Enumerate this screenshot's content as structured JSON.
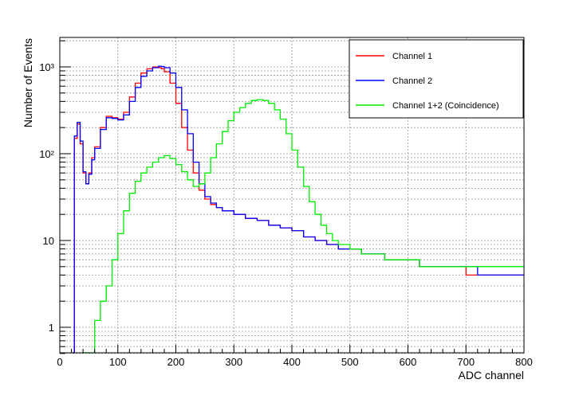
{
  "chart_data": {
    "type": "line",
    "title": "",
    "xlabel": "ADC channel",
    "ylabel": "Number of Events",
    "xlim": [
      0,
      800
    ],
    "ylim": [
      0.5,
      2000
    ],
    "yscale": "log",
    "grid": true,
    "legend_position": "top-right",
    "x_ticks": [
      "0",
      "100",
      "200",
      "300",
      "400",
      "500",
      "600",
      "700",
      "800"
    ],
    "y_ticks": [
      "1",
      "10",
      "10²",
      "10³"
    ],
    "series": [
      {
        "name": "Channel 1",
        "color": "#ff0000",
        "x": [
          22,
          25,
          30,
          35,
          40,
          45,
          50,
          55,
          60,
          70,
          80,
          90,
          100,
          110,
          120,
          130,
          140,
          150,
          160,
          170,
          175,
          180,
          190,
          200,
          210,
          220,
          230,
          240,
          250,
          260,
          270,
          280,
          300,
          320,
          340,
          360,
          380,
          400,
          420,
          440,
          460,
          480,
          500,
          520,
          540,
          560,
          580,
          600,
          620,
          640,
          660,
          680,
          700,
          720,
          740,
          760,
          780,
          800
        ],
        "y": [
          0.5,
          150,
          220,
          130,
          60,
          45,
          60,
          90,
          120,
          200,
          270,
          260,
          250,
          300,
          450,
          650,
          850,
          950,
          1000,
          980,
          950,
          880,
          650,
          380,
          200,
          110,
          60,
          38,
          30,
          26,
          24,
          22,
          20,
          18,
          17,
          15,
          14,
          13,
          11,
          10,
          9,
          8,
          8,
          7,
          7,
          6,
          6,
          6,
          5,
          5,
          5,
          5,
          4,
          4,
          4,
          4,
          4,
          4
        ]
      },
      {
        "name": "Channel 2",
        "color": "#0000ff",
        "x": [
          22,
          25,
          30,
          35,
          40,
          45,
          50,
          55,
          60,
          70,
          80,
          90,
          100,
          110,
          120,
          130,
          140,
          150,
          160,
          170,
          175,
          180,
          190,
          200,
          210,
          220,
          230,
          240,
          250,
          260,
          270,
          280,
          300,
          320,
          340,
          360,
          380,
          400,
          420,
          440,
          460,
          480,
          500,
          520,
          540,
          560,
          580,
          600,
          620,
          640,
          660,
          680,
          700,
          720,
          740,
          760,
          780,
          800
        ],
        "y": [
          0.5,
          160,
          230,
          140,
          62,
          45,
          58,
          85,
          115,
          190,
          260,
          255,
          245,
          280,
          400,
          580,
          780,
          900,
          980,
          1020,
          1010,
          980,
          850,
          580,
          320,
          170,
          80,
          45,
          32,
          27,
          24,
          22,
          20,
          18,
          17,
          15,
          14,
          13,
          11,
          10,
          9,
          8,
          8,
          7,
          7,
          6,
          6,
          6,
          5,
          5,
          5,
          5,
          5,
          4,
          4,
          4,
          4,
          4
        ]
      },
      {
        "name": "Channel 1+2 (Coincidence)",
        "color": "#00ee00",
        "x": [
          40,
          55,
          60,
          70,
          80,
          90,
          100,
          110,
          120,
          130,
          140,
          150,
          160,
          170,
          180,
          190,
          200,
          210,
          220,
          230,
          240,
          250,
          260,
          270,
          280,
          290,
          300,
          310,
          320,
          330,
          340,
          350,
          360,
          370,
          380,
          390,
          400,
          410,
          420,
          430,
          440,
          450,
          460,
          470,
          480,
          500,
          520,
          540,
          560,
          580,
          600,
          620,
          640,
          660,
          680,
          700,
          720,
          740,
          760,
          780,
          800
        ],
        "y": [
          0.5,
          0.5,
          1.2,
          2,
          3,
          6,
          12,
          22,
          35,
          48,
          60,
          70,
          80,
          90,
          95,
          88,
          75,
          62,
          50,
          42,
          45,
          60,
          90,
          130,
          180,
          240,
          300,
          340,
          380,
          410,
          420,
          410,
          380,
          320,
          250,
          170,
          110,
          70,
          42,
          28,
          20,
          15,
          12,
          10,
          9,
          8,
          7,
          7,
          6,
          6,
          6,
          5,
          5,
          5,
          5,
          5,
          5,
          5,
          5,
          5,
          5
        ]
      }
    ]
  }
}
